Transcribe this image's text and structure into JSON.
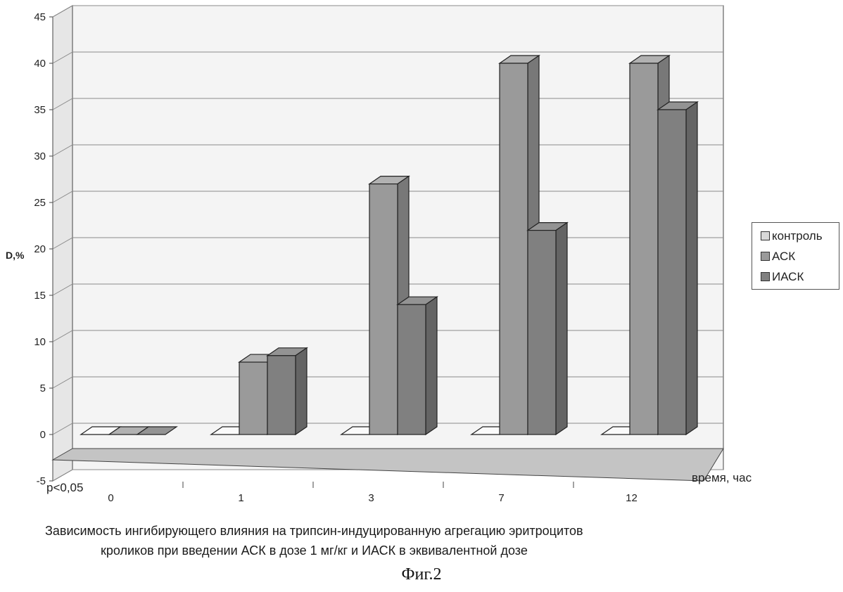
{
  "chart_data": {
    "type": "bar",
    "style": "3d-clustered-column",
    "categories": [
      "0",
      "1",
      "3",
      "7",
      "12"
    ],
    "series": [
      {
        "name": "контроль",
        "values": [
          0,
          0,
          0,
          0,
          0
        ],
        "color": "#d9d9d9"
      },
      {
        "name": "АСК",
        "values": [
          0,
          7.8,
          27,
          40,
          40
        ],
        "color": "#9a9a9a"
      },
      {
        "name": "ИАСК",
        "values": [
          0,
          8.5,
          14,
          22,
          35
        ],
        "color": "#808080"
      }
    ],
    "ylabel": "D,%",
    "xlabel": "время, час",
    "ylim": [
      -5,
      45
    ],
    "yticks": [
      -5,
      0,
      5,
      10,
      15,
      20,
      25,
      30,
      35,
      40,
      45
    ],
    "grid": true,
    "legend": "right",
    "annotation": "p<0,05"
  },
  "caption": {
    "line1": "Зависимость ингибирующего влияния на трипсин-индуцированную агрегацию эритроцитов",
    "line2": "кроликов при введении АСК в дозе 1 мг/кг и ИАСК в эквивалентной дозе",
    "figure_label": "Фиг.2"
  },
  "colors": {
    "wall": "#f4f4f4",
    "floor": "#c4c4c4",
    "grid": "#8a8a8a",
    "axis": "#444444"
  }
}
